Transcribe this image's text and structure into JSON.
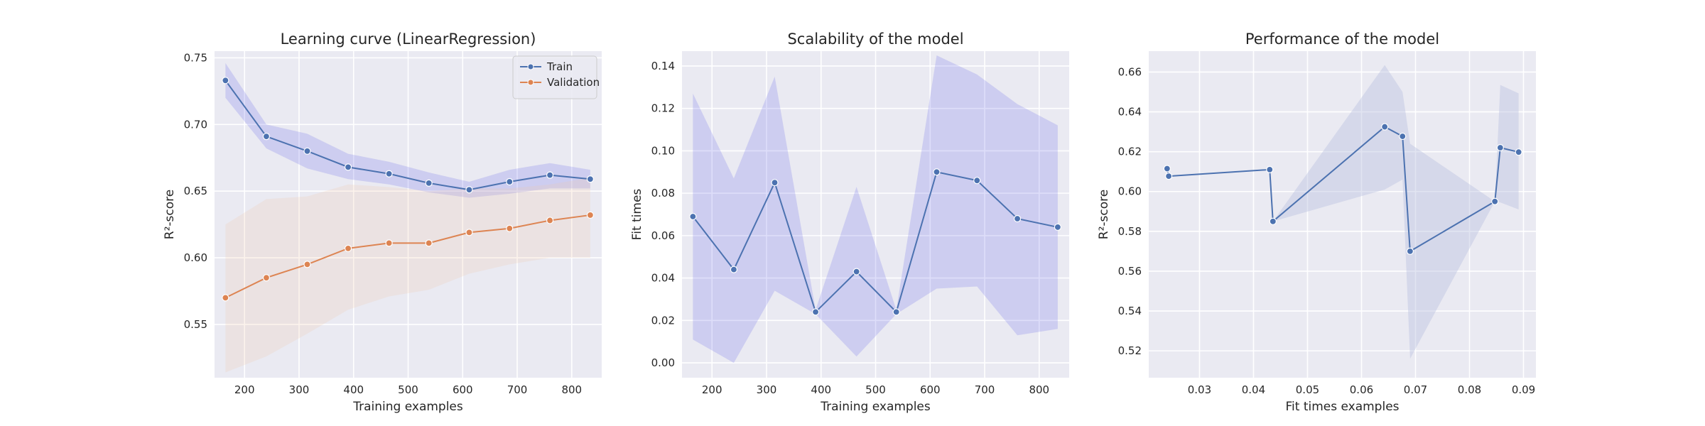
{
  "chart_data": [
    {
      "type": "line",
      "title": "Learning curve (LinearRegression)",
      "xlabel": "Training examples",
      "ylabel": "R²-score",
      "xlim": [
        145,
        855
      ],
      "ylim": [
        0.51,
        0.755
      ],
      "xticks": [
        200,
        300,
        400,
        500,
        600,
        700,
        800
      ],
      "yticks": [
        0.55,
        0.6,
        0.65,
        0.7,
        0.75
      ],
      "ytick_labels": [
        "0.55",
        "0.60",
        "0.65",
        "0.70",
        "0.75"
      ],
      "grid": true,
      "legend": "top-right",
      "x": [
        165,
        240,
        315,
        390,
        465,
        538,
        612,
        686,
        760,
        834
      ],
      "series": [
        {
          "name": "Train",
          "color": "#4c72b0",
          "band_color": "#6a6ae6",
          "values": [
            0.733,
            0.691,
            0.68,
            0.668,
            0.663,
            0.656,
            0.651,
            0.657,
            0.662,
            0.659
          ],
          "lower": [
            0.72,
            0.682,
            0.667,
            0.659,
            0.655,
            0.649,
            0.645,
            0.648,
            0.652,
            0.652
          ],
          "upper": [
            0.746,
            0.7,
            0.693,
            0.678,
            0.672,
            0.664,
            0.657,
            0.666,
            0.671,
            0.666
          ]
        },
        {
          "name": "Validation",
          "color": "#dd8452",
          "band_color": "#f0c8a8",
          "values": [
            0.57,
            0.585,
            0.595,
            0.607,
            0.611,
            0.611,
            0.619,
            0.622,
            0.628,
            0.632
          ],
          "lower": [
            0.514,
            0.526,
            0.543,
            0.561,
            0.571,
            0.576,
            0.588,
            0.595,
            0.6,
            0.6
          ],
          "upper": [
            0.625,
            0.644,
            0.646,
            0.655,
            0.653,
            0.65,
            0.652,
            0.652,
            0.655,
            0.66
          ]
        }
      ]
    },
    {
      "type": "line",
      "title": "Scalability of the model",
      "xlabel": "Training examples",
      "ylabel": "Fit times",
      "xlim": [
        145,
        855
      ],
      "ylim": [
        -0.007,
        0.147
      ],
      "xticks": [
        200,
        300,
        400,
        500,
        600,
        700,
        800
      ],
      "yticks": [
        0.0,
        0.02,
        0.04,
        0.06,
        0.08,
        0.1,
        0.12,
        0.14
      ],
      "ytick_labels": [
        "0.00",
        "0.02",
        "0.04",
        "0.06",
        "0.08",
        "0.10",
        "0.12",
        "0.14"
      ],
      "grid": true,
      "x": [
        165,
        240,
        315,
        390,
        465,
        538,
        612,
        686,
        760,
        834
      ],
      "series": [
        {
          "color": "#4c72b0",
          "band_color": "#6a6ae6",
          "values": [
            0.069,
            0.044,
            0.085,
            0.024,
            0.043,
            0.024,
            0.09,
            0.086,
            0.068,
            0.064
          ],
          "lower": [
            0.011,
            0.0,
            0.034,
            0.023,
            0.003,
            0.023,
            0.035,
            0.036,
            0.013,
            0.016
          ],
          "upper": [
            0.127,
            0.087,
            0.135,
            0.025,
            0.083,
            0.025,
            0.145,
            0.136,
            0.122,
            0.112
          ]
        }
      ]
    },
    {
      "type": "line",
      "title": "Performance of the model",
      "xlabel": "Fit times examples",
      "ylabel": "R²-score",
      "xlim": [
        0.0206,
        0.0923
      ],
      "ylim": [
        0.5065,
        0.6705
      ],
      "xticks": [
        0.03,
        0.04,
        0.05,
        0.06,
        0.07,
        0.08,
        0.09
      ],
      "xtick_labels": [
        "0.03",
        "0.04",
        "0.05",
        "0.06",
        "0.07",
        "0.08",
        "0.09"
      ],
      "yticks": [
        0.52,
        0.54,
        0.56,
        0.58,
        0.6,
        0.62,
        0.64,
        0.66
      ],
      "ytick_labels": [
        "0.52",
        "0.54",
        "0.56",
        "0.58",
        "0.60",
        "0.62",
        "0.64",
        "0.66"
      ],
      "grid": true,
      "series": [
        {
          "color": "#4c72b0",
          "band_color": "#bcc4df",
          "x": [
            0.024,
            0.0243,
            0.043,
            0.0436,
            0.0643,
            0.0676,
            0.069,
            0.0847,
            0.0857,
            0.0891
          ],
          "values": [
            0.6115,
            0.6077,
            0.611,
            0.585,
            0.6325,
            0.6277,
            0.57,
            0.595,
            0.622,
            0.6198
          ],
          "lower": [
            0.6115,
            0.6077,
            0.611,
            0.585,
            0.601,
            0.606,
            0.516,
            0.595,
            0.5945,
            0.591
          ],
          "upper": [
            0.6115,
            0.6077,
            0.611,
            0.585,
            0.6635,
            0.65,
            0.624,
            0.595,
            0.6535,
            0.6493
          ]
        }
      ]
    }
  ]
}
